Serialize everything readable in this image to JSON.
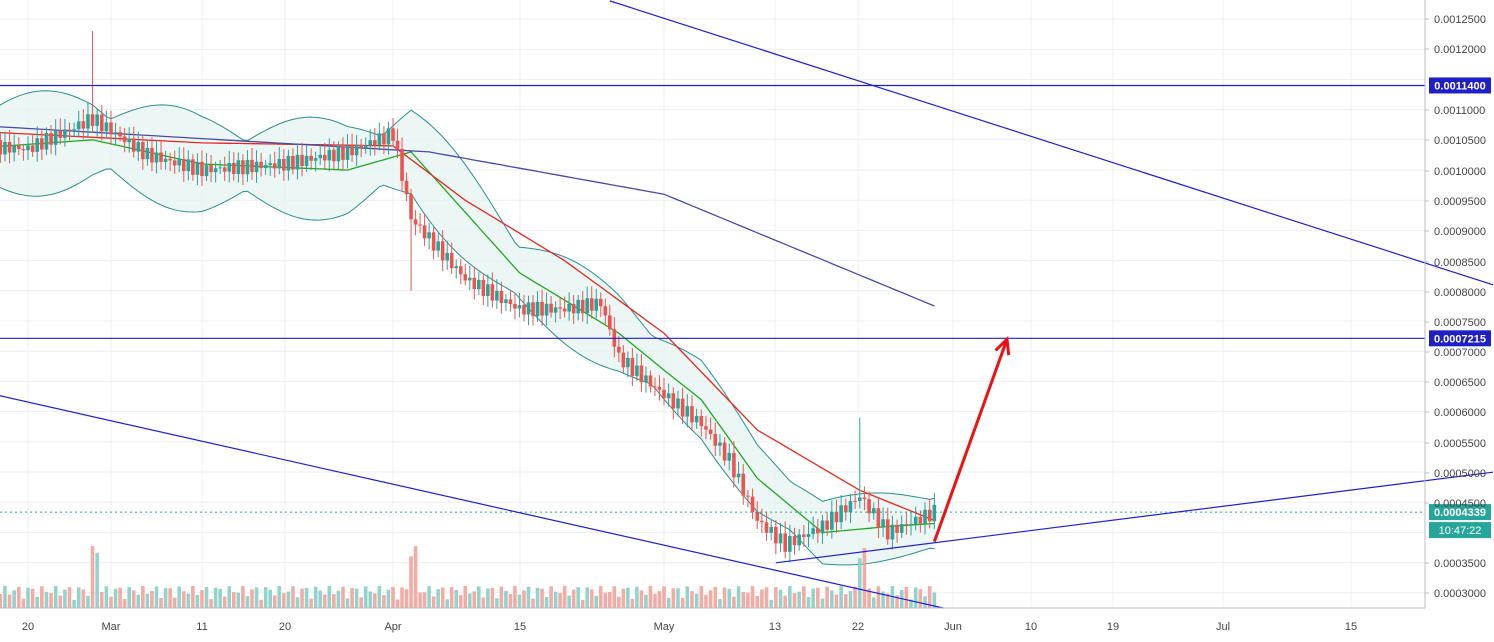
{
  "chart_data": {
    "type": "candlestick",
    "title": "",
    "xlabel": "",
    "ylabel": "",
    "x_axis": {
      "tick_labels": [
        "20",
        "Mar",
        "11",
        "20",
        "Apr",
        "15",
        "May",
        "13",
        "22",
        "Jun",
        "10",
        "19",
        "Jul",
        "15"
      ]
    },
    "y_axis": {
      "position": "right",
      "range": [
        0.00027,
        0.00128
      ],
      "tick_labels": [
        "0.0012500",
        "0.0012000",
        "0.0011000",
        "0.0010500",
        "0.0010000",
        "0.0009500",
        "0.0009000",
        "0.0008500",
        "0.0008000",
        "0.0007500",
        "0.0007000",
        "0.0006500",
        "0.0006000",
        "0.0005500",
        "0.0005000",
        "0.0004500",
        "0.0003500",
        "0.0003000"
      ]
    },
    "grid": true,
    "price_series": {
      "name": "",
      "close_points": [
        {
          "date": "Feb 13",
          "close": 0.00104
        },
        {
          "date": "Feb 20",
          "close": 0.001035
        },
        {
          "date": "Feb 27",
          "close": 0.001085
        },
        {
          "date": "Mar 05",
          "close": 0.001025
        },
        {
          "date": "Mar 11",
          "close": 0.001
        },
        {
          "date": "Mar 20",
          "close": 0.00101
        },
        {
          "date": "Mar 27",
          "close": 0.00103
        },
        {
          "date": "Apr 01",
          "close": 0.00106
        },
        {
          "date": "Apr 03",
          "close": 0.00092
        },
        {
          "date": "Apr 09",
          "close": 0.00082
        },
        {
          "date": "Apr 15",
          "close": 0.00077
        },
        {
          "date": "Apr 20",
          "close": 0.00077
        },
        {
          "date": "Apr 24",
          "close": 0.00078
        },
        {
          "date": "Apr 26",
          "close": 0.00069
        },
        {
          "date": "Apr 30",
          "close": 0.00064
        },
        {
          "date": "May 05",
          "close": 0.00058
        },
        {
          "date": "May 08",
          "close": 0.00052
        },
        {
          "date": "May 11",
          "close": 0.00042
        },
        {
          "date": "May 14",
          "close": 0.00038
        },
        {
          "date": "May 18",
          "close": 0.00041
        },
        {
          "date": "May 22",
          "close": 0.00046
        },
        {
          "date": "May 25",
          "close": 0.0004
        },
        {
          "date": "May 28",
          "close": 0.00042
        },
        {
          "date": "May 30",
          "close": 0.000434
        }
      ],
      "spikes": [
        {
          "date": "Feb 27",
          "high": 0.00123
        },
        {
          "date": "Apr 03",
          "low": 0.0008
        },
        {
          "date": "May 22",
          "high": 0.00059
        }
      ]
    },
    "moving_averages": [
      {
        "name": "",
        "color": "#21a821",
        "points": [
          {
            "date": "Feb 13",
            "value": 0.001035
          },
          {
            "date": "Feb 27",
            "value": 0.00105
          },
          {
            "date": "Mar 11",
            "value": 0.00101
          },
          {
            "date": "Mar 27",
            "value": 0.001
          },
          {
            "date": "Apr 03",
            "value": 0.00103
          },
          {
            "date": "Apr 15",
            "value": 0.00083
          },
          {
            "date": "Apr 26",
            "value": 0.00073
          },
          {
            "date": "May 05",
            "value": 0.00062
          },
          {
            "date": "May 11",
            "value": 0.00049
          },
          {
            "date": "May 18",
            "value": 0.0004
          },
          {
            "date": "May 25",
            "value": 0.00041
          },
          {
            "date": "May 30",
            "value": 0.000415
          }
        ]
      },
      {
        "name": "",
        "color": "#e8261e",
        "points": [
          {
            "date": "Feb 13",
            "value": 0.001065
          },
          {
            "date": "Mar 11",
            "value": 0.001045
          },
          {
            "date": "Apr 01",
            "value": 0.00104
          },
          {
            "date": "Apr 09",
            "value": 0.00095
          },
          {
            "date": "Apr 20",
            "value": 0.00085
          },
          {
            "date": "May 01",
            "value": 0.00073
          },
          {
            "date": "May 11",
            "value": 0.00057
          },
          {
            "date": "May 22",
            "value": 0.00047
          },
          {
            "date": "May 30",
            "value": 0.00042
          }
        ]
      },
      {
        "name": "",
        "color": "#4a4aa8",
        "points": [
          {
            "date": "Feb 13",
            "value": 0.001075
          },
          {
            "date": "Apr 05",
            "value": 0.00103
          },
          {
            "date": "May 01",
            "value": 0.00096
          },
          {
            "date": "May 30",
            "value": 0.000775
          }
        ]
      }
    ],
    "horizontal_levels": [
      {
        "value": 0.00114,
        "label": "0.0011400",
        "color": "#1f1fc8"
      },
      {
        "value": 0.0007215,
        "label": "0.0007215",
        "color": "#1f1fc8"
      }
    ],
    "last_price": {
      "value": 0.0004339,
      "label": "0.0004339",
      "color": "#26a69a",
      "countdown": "10:47:22"
    },
    "trendlines": [
      {
        "from": {
          "date": "Apr 25",
          "value": 0.00128
        },
        "to": {
          "date": "Jul 31",
          "value": 0.00081
        }
      },
      {
        "from": {
          "date": "Feb 13",
          "value": 0.00064
        },
        "to": {
          "date": "May 31",
          "value": 0.000275
        }
      },
      {
        "from": {
          "date": "May 13",
          "value": 0.00035
        },
        "to": {
          "date": "Jul 31",
          "value": 0.0005
        }
      }
    ],
    "projection_arrow": {
      "from": {
        "date": "May 30",
        "value": 0.000385
      },
      "to": {
        "date": "Jun 07",
        "value": 0.00072
      },
      "color": "#ee1111"
    },
    "volume": {
      "positive_color": "#86cfc6",
      "negative_color": "#f2a39b"
    },
    "colors": {
      "up": "#26a69a",
      "down": "#ef5350",
      "band_fill": "#e6f4f2",
      "band_line": "#2a8f8f",
      "grid": "#eceff3",
      "axis_text": "#444444"
    }
  }
}
